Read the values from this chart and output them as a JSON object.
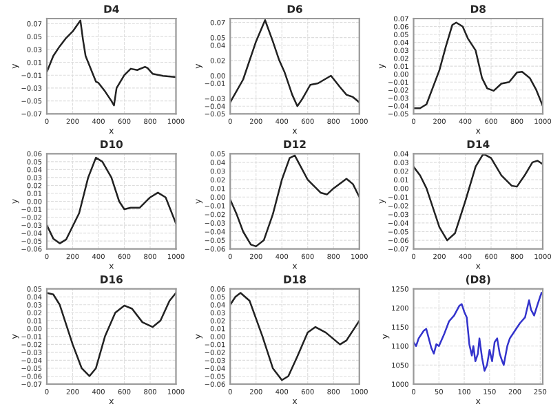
{
  "chart_data": [
    {
      "type": "line",
      "title": "D4",
      "xlabel": "x",
      "ylabel": "y",
      "grid": true,
      "xlim": [
        0,
        1000
      ],
      "xticks": [
        0,
        200,
        400,
        600,
        800,
        1000
      ],
      "ylim": [
        -0.07,
        0.078
      ],
      "yticks": [
        {
          "value": -0.07,
          "label": "−0.07"
        },
        {
          "value": -0.05,
          "label": "−0.05"
        },
        {
          "value": -0.03,
          "label": "−0.03"
        },
        {
          "value": -0.01,
          "label": "−0.01"
        },
        0.01,
        0.03,
        0.05,
        0.07
      ],
      "series": [
        {
          "color": "#222222",
          "x": [
            0,
            50,
            100,
            150,
            200,
            260,
            280,
            300,
            330,
            380,
            400,
            450,
            500,
            520,
            540,
            600,
            650,
            700,
            760,
            780,
            820,
            900,
            1000
          ],
          "values": [
            -0.005,
            0.02,
            0.035,
            0.048,
            0.058,
            0.075,
            0.045,
            0.02,
            0.005,
            -0.02,
            -0.022,
            -0.035,
            -0.05,
            -0.057,
            -0.03,
            -0.01,
            0.0,
            -0.002,
            0.003,
            0.001,
            -0.008,
            -0.011,
            -0.013
          ]
        }
      ]
    },
    {
      "type": "line",
      "title": "D6",
      "xlabel": "x",
      "ylabel": "y",
      "grid": true,
      "xlim": [
        0,
        1000
      ],
      "xticks": [
        0,
        200,
        400,
        600,
        800,
        1000
      ],
      "ylim": [
        -0.05,
        0.075
      ],
      "yticks": [
        {
          "value": -0.05,
          "label": "−0.05"
        },
        {
          "value": -0.04,
          "label": "−0.04"
        },
        {
          "value": -0.03,
          "label": "−0.03"
        },
        {
          "value": -0.01,
          "label": "−0.01"
        },
        {
          "value": 0.0,
          "label": "0.00"
        },
        0.02,
        0.04,
        0.05,
        0.07
      ],
      "series": [
        {
          "color": "#222222",
          "x": [
            0,
            100,
            200,
            270,
            330,
            380,
            420,
            480,
            520,
            560,
            620,
            680,
            780,
            850,
            900,
            950,
            1000
          ],
          "values": [
            -0.035,
            -0.005,
            0.045,
            0.073,
            0.045,
            0.02,
            0.005,
            -0.025,
            -0.04,
            -0.03,
            -0.012,
            -0.01,
            0.0,
            -0.015,
            -0.025,
            -0.028,
            -0.035
          ]
        }
      ]
    },
    {
      "type": "line",
      "title": "D8",
      "xlabel": "x",
      "ylabel": "y",
      "grid": true,
      "xlim": [
        0,
        1000
      ],
      "xticks": [
        0,
        200,
        400,
        600,
        800,
        1000
      ],
      "ylim": [
        -0.05,
        0.07
      ],
      "yticks": [
        {
          "value": -0.05,
          "label": "−0.05"
        },
        {
          "value": -0.04,
          "label": "−0.04"
        },
        {
          "value": -0.03,
          "label": "−0.03"
        },
        {
          "value": -0.02,
          "label": "−0.02"
        },
        {
          "value": -0.01,
          "label": "−0.01"
        },
        {
          "value": 0.0,
          "label": "0.00"
        },
        0.01,
        0.02,
        0.03,
        0.04,
        0.05,
        0.06,
        0.07
      ],
      "series": [
        {
          "color": "#222222",
          "x": [
            0,
            50,
            100,
            200,
            250,
            300,
            330,
            380,
            420,
            480,
            530,
            570,
            620,
            680,
            740,
            800,
            840,
            900,
            950,
            1000
          ],
          "values": [
            -0.043,
            -0.043,
            -0.038,
            0.005,
            0.035,
            0.062,
            0.065,
            0.06,
            0.045,
            0.03,
            -0.005,
            -0.018,
            -0.021,
            -0.012,
            -0.01,
            0.002,
            0.003,
            -0.005,
            -0.02,
            -0.04
          ]
        }
      ]
    },
    {
      "type": "line",
      "title": "D10",
      "xlabel": "x",
      "ylabel": "y",
      "grid": true,
      "xlim": [
        0,
        1000
      ],
      "xticks": [
        0,
        200,
        400,
        600,
        800,
        1000
      ],
      "ylim": [
        -0.06,
        0.06
      ],
      "yticks": [
        {
          "value": -0.06,
          "label": "−0.06"
        },
        {
          "value": -0.05,
          "label": "−0.05"
        },
        {
          "value": -0.04,
          "label": "−0.04"
        },
        {
          "value": -0.03,
          "label": "−0.03"
        },
        {
          "value": -0.02,
          "label": "−0.02"
        },
        {
          "value": -0.01,
          "label": "−0.01"
        },
        {
          "value": 0.0,
          "label": "0.00"
        },
        0.01,
        0.02,
        0.03,
        0.04,
        0.05,
        0.06
      ],
      "series": [
        {
          "color": "#222222",
          "x": [
            0,
            50,
            100,
            150,
            250,
            320,
            380,
            430,
            500,
            560,
            600,
            650,
            720,
            800,
            860,
            920,
            1000
          ],
          "values": [
            -0.03,
            -0.047,
            -0.053,
            -0.048,
            -0.015,
            0.03,
            0.055,
            0.05,
            0.03,
            0.0,
            -0.01,
            -0.008,
            -0.008,
            0.005,
            0.011,
            0.005,
            -0.028
          ]
        }
      ]
    },
    {
      "type": "line",
      "title": "D12",
      "xlabel": "x",
      "ylabel": "y",
      "grid": true,
      "xlim": [
        0,
        1000
      ],
      "xticks": [
        0,
        200,
        400,
        600,
        800,
        1000
      ],
      "ylim": [
        -0.06,
        0.05
      ],
      "yticks": [
        {
          "value": -0.06,
          "label": "−0.06"
        },
        {
          "value": -0.05,
          "label": "−0.05"
        },
        {
          "value": -0.04,
          "label": "−0.04"
        },
        {
          "value": -0.03,
          "label": "−0.03"
        },
        {
          "value": -0.02,
          "label": "−0.02"
        },
        {
          "value": -0.01,
          "label": "−0.01"
        },
        {
          "value": 0.0,
          "label": "0.00"
        },
        0.01,
        0.02,
        0.03,
        0.04,
        0.05
      ],
      "series": [
        {
          "color": "#222222",
          "x": [
            0,
            50,
            100,
            160,
            200,
            260,
            330,
            400,
            460,
            500,
            600,
            700,
            750,
            800,
            900,
            950,
            1000
          ],
          "values": [
            -0.003,
            -0.02,
            -0.04,
            -0.055,
            -0.057,
            -0.05,
            -0.02,
            0.02,
            0.045,
            0.048,
            0.02,
            0.005,
            0.003,
            0.01,
            0.021,
            0.015,
            0.0
          ]
        }
      ]
    },
    {
      "type": "line",
      "title": "D14",
      "xlabel": "x",
      "ylabel": "y",
      "grid": true,
      "xlim": [
        0,
        1000
      ],
      "xticks": [
        0,
        200,
        400,
        600,
        800,
        1000
      ],
      "ylim": [
        -0.07,
        0.04
      ],
      "yticks": [
        {
          "value": -0.07,
          "label": "−0.07"
        },
        {
          "value": -0.06,
          "label": "−0.06"
        },
        {
          "value": -0.05,
          "label": "−0.05"
        },
        {
          "value": -0.04,
          "label": "−0.04"
        },
        {
          "value": -0.03,
          "label": "−0.03"
        },
        {
          "value": -0.02,
          "label": "−0.02"
        },
        {
          "value": -0.01,
          "label": "−0.01"
        },
        {
          "value": 0.0,
          "label": "0.00"
        },
        0.01,
        0.02,
        0.03,
        0.04
      ],
      "series": [
        {
          "color": "#222222",
          "x": [
            0,
            50,
            100,
            200,
            260,
            320,
            400,
            480,
            540,
            600,
            680,
            760,
            800,
            860,
            920,
            960,
            1000
          ],
          "values": [
            0.025,
            0.015,
            0.0,
            -0.045,
            -0.06,
            -0.052,
            -0.015,
            0.025,
            0.04,
            0.035,
            0.015,
            0.003,
            0.002,
            0.015,
            0.03,
            0.032,
            0.028
          ]
        }
      ]
    },
    {
      "type": "line",
      "title": "D16",
      "xlabel": "x",
      "ylabel": "y",
      "grid": true,
      "xlim": [
        0,
        1000
      ],
      "xticks": [
        0,
        200,
        400,
        600,
        800,
        1000
      ],
      "ylim": [
        -0.07,
        0.05
      ],
      "yticks": [
        {
          "value": -0.07,
          "label": "−0.07"
        },
        {
          "value": -0.06,
          "label": "−0.06"
        },
        {
          "value": -0.05,
          "label": "−0.05"
        },
        {
          "value": -0.04,
          "label": "−0.04"
        },
        {
          "value": -0.03,
          "label": "−0.03"
        },
        {
          "value": -0.02,
          "label": "−0.02"
        },
        {
          "value": -0.01,
          "label": "−0.01"
        },
        {
          "value": 0.0,
          "label": "0.00"
        },
        0.01,
        0.02,
        0.03,
        0.04,
        0.05
      ],
      "series": [
        {
          "color": "#222222",
          "x": [
            0,
            50,
            100,
            200,
            270,
            330,
            380,
            450,
            530,
            600,
            660,
            740,
            820,
            880,
            950,
            1000
          ],
          "values": [
            0.045,
            0.043,
            0.03,
            -0.02,
            -0.05,
            -0.06,
            -0.05,
            -0.01,
            0.02,
            0.029,
            0.025,
            0.008,
            0.002,
            0.01,
            0.035,
            0.045
          ]
        }
      ]
    },
    {
      "type": "line",
      "title": "D18",
      "xlabel": "x",
      "ylabel": "y",
      "grid": true,
      "xlim": [
        0,
        1000
      ],
      "xticks": [
        0,
        200,
        400,
        600,
        800,
        1000
      ],
      "ylim": [
        -0.06,
        0.06
      ],
      "yticks": [
        {
          "value": -0.06,
          "label": "−0.06"
        },
        {
          "value": -0.05,
          "label": "−0.05"
        },
        {
          "value": -0.04,
          "label": "−0.04"
        },
        {
          "value": -0.03,
          "label": "−0.03"
        },
        {
          "value": -0.02,
          "label": "−0.02"
        },
        {
          "value": -0.01,
          "label": "−0.01"
        },
        {
          "value": 0.0,
          "label": "0.00"
        },
        0.01,
        0.02,
        0.03,
        0.04,
        0.05,
        0.06
      ],
      "series": [
        {
          "color": "#222222",
          "x": [
            0,
            40,
            80,
            150,
            250,
            330,
            400,
            450,
            520,
            600,
            660,
            740,
            850,
            900,
            1000
          ],
          "values": [
            0.04,
            0.05,
            0.055,
            0.045,
            0.0,
            -0.04,
            -0.055,
            -0.05,
            -0.025,
            0.005,
            0.012,
            0.005,
            -0.01,
            -0.005,
            0.02
          ]
        }
      ]
    },
    {
      "type": "line",
      "title": "(D8)",
      "xlabel": "x",
      "ylabel": "y",
      "grid": true,
      "xlim": [
        0,
        255
      ],
      "xticks": [
        0,
        50,
        100,
        150,
        200,
        250
      ],
      "ylim": [
        1000,
        1250
      ],
      "yticks": [
        1000,
        1050,
        1100,
        1150,
        1200,
        1250
      ],
      "series": [
        {
          "color": "#3333cc",
          "x": [
            0,
            5,
            10,
            20,
            25,
            30,
            35,
            40,
            45,
            50,
            60,
            70,
            80,
            90,
            95,
            100,
            105,
            110,
            115,
            118,
            122,
            127,
            130,
            135,
            140,
            145,
            150,
            155,
            160,
            165,
            170,
            175,
            178,
            185,
            190,
            200,
            210,
            220,
            228,
            232,
            238,
            245,
            250,
            253
          ],
          "values": [
            1110,
            1100,
            1120,
            1140,
            1145,
            1120,
            1095,
            1080,
            1105,
            1100,
            1130,
            1165,
            1180,
            1205,
            1210,
            1190,
            1175,
            1105,
            1075,
            1100,
            1060,
            1080,
            1120,
            1070,
            1035,
            1050,
            1090,
            1060,
            1110,
            1120,
            1080,
            1060,
            1050,
            1100,
            1120,
            1140,
            1160,
            1175,
            1220,
            1195,
            1180,
            1210,
            1230,
            1240
          ]
        }
      ]
    }
  ]
}
